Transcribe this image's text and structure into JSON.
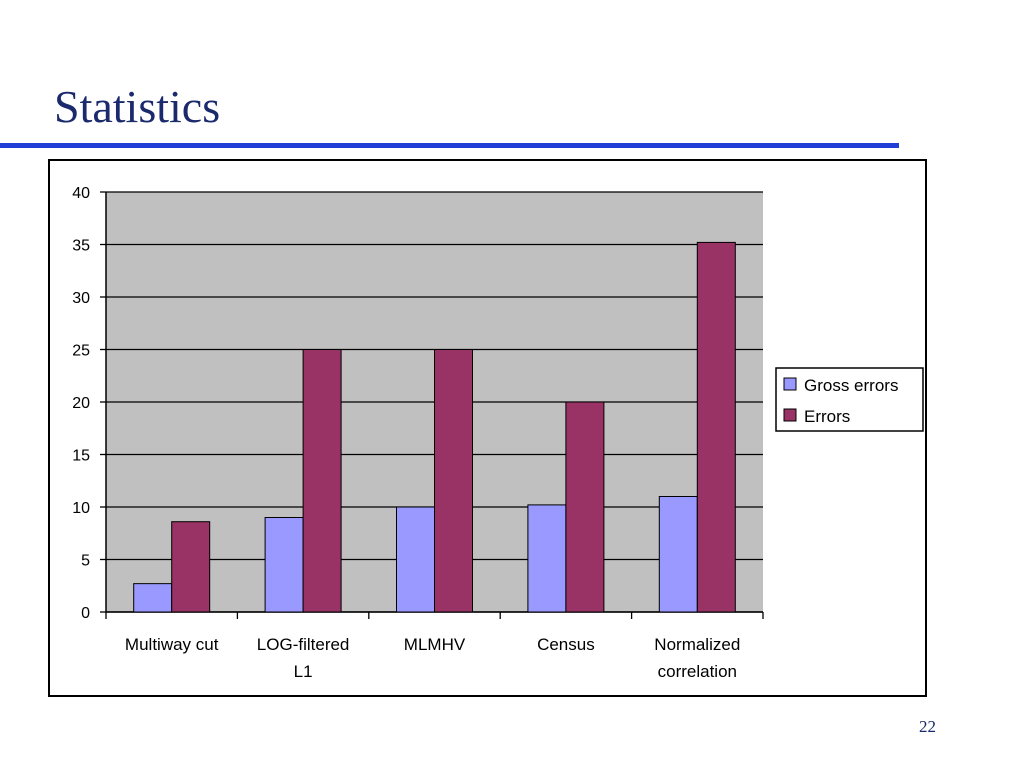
{
  "slide": {
    "title": "Statistics",
    "page_number": "22"
  },
  "colors": {
    "title": "#1a2a6c",
    "rule": "#1f3fd6",
    "plot_background": "#c0c0c0",
    "gross_errors": "#9999ff",
    "errors": "#993366"
  },
  "chart_data": {
    "type": "bar",
    "title": "",
    "xlabel": "",
    "ylabel": "",
    "categories": [
      [
        "Multiway cut"
      ],
      [
        "LOG-filtered",
        "L1"
      ],
      [
        "MLMHV"
      ],
      [
        "Census"
      ],
      [
        "Normalized",
        "correlation"
      ]
    ],
    "series": [
      {
        "name": "Gross errors",
        "color": "#9999ff",
        "values": [
          2.7,
          9,
          10,
          10.2,
          11
        ]
      },
      {
        "name": "Errors",
        "color": "#993366",
        "values": [
          8.6,
          25,
          25,
          20,
          35.2
        ]
      }
    ],
    "ylim": [
      0,
      40
    ],
    "yticks": [
      0,
      5,
      10,
      15,
      20,
      25,
      30,
      35,
      40
    ],
    "grid": true,
    "legend": "right"
  }
}
